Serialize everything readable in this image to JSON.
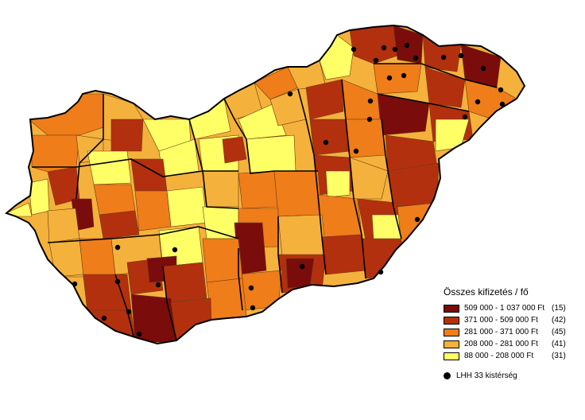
{
  "legend": {
    "title": "Összes kifizetés / fő",
    "classes": [
      {
        "range": "509 000 - 1 037 000 Ft",
        "count": "(15)",
        "color": "#7a0c0c"
      },
      {
        "range": "371 000 - 509 000 Ft",
        "count": "(42)",
        "color": "#b3300e"
      },
      {
        "range": "281 000 - 371 000 Ft",
        "count": "(45)",
        "color": "#ef7d1a"
      },
      {
        "range": "208 000 - 281 000 Ft",
        "count": "(41)",
        "color": "#f4b13c"
      },
      {
        "range": "88 000 - 208 000 Ft",
        "count": "(31)",
        "color": "#ffff66"
      }
    ],
    "marker_label": "LHH 33 kistérség"
  }
}
